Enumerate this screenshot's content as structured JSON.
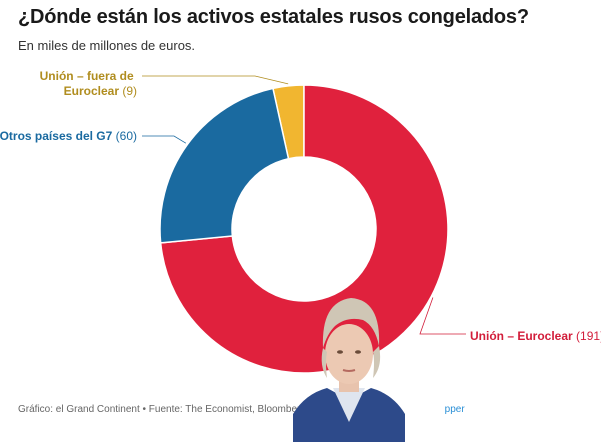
{
  "header": {
    "title": "¿Dónde están los activos estatales rusos congelados?",
    "subtitle": "En miles de millones de euros."
  },
  "colors": {
    "Unión – Euroclear": "#e0213d",
    "Otros países del G7": "#1a6aa0",
    "Unión – fuera de Euroclear": "#f1b630"
  },
  "chart_data": {
    "type": "pie",
    "title": "¿Dónde están los activos estatales rusos congelados?",
    "subtitle": "En miles de millones de euros.",
    "categories": [
      "Unión – fuera de Euroclear",
      "Unión – Euroclear",
      "Otros países del G7"
    ],
    "values": [
      9,
      191,
      60
    ],
    "donut": true,
    "labels": [
      {
        "line1": "Unión – fuera de",
        "line2": "Euroclear",
        "value": "(9)"
      },
      {
        "line1": "Unión – Euroclear",
        "value": "(191)"
      },
      {
        "line1": "Otros países del G7",
        "value": "(60)"
      }
    ]
  },
  "footer": {
    "text": "Gráfico: el Grand Continent • Fuente: The Economist, Bloomberg • Crea",
    "tail": "pper"
  }
}
